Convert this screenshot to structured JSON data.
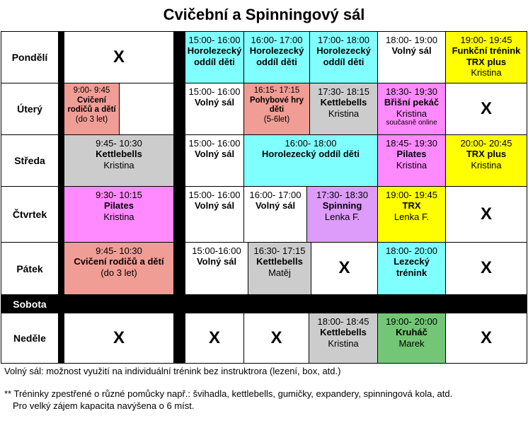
{
  "title": "Cvičební a Spinningový sál",
  "colors": {
    "cyan": "#80ffff",
    "salmon": "#f09d95",
    "grey": "#cccccc",
    "pink": "#ff8aff",
    "yellow": "#ffff00",
    "violet": "#dd9bfa",
    "green": "#73c676",
    "white": "#ffffff"
  },
  "days": {
    "mon": "Pondělí",
    "tue": "Úterý",
    "wed": "Středa",
    "thu": "Čtvrtek",
    "fri": "Pátek",
    "sat": "Sobota",
    "sun": "Neděle"
  },
  "mark": "X",
  "mon": {
    "c1": {
      "time": "15:00- 16:00",
      "name": "Horolezecký oddíl děti"
    },
    "c2": {
      "time": "16:00- 17:00",
      "name": "Horolezecký oddíl děti"
    },
    "c3": {
      "time": "17:00- 18:00",
      "name": "Horolezecký oddíl děti"
    },
    "c4": {
      "time": "18:00- 19:00",
      "name": "Volný sál"
    },
    "c5": {
      "time": "19:00- 19:45",
      "name": "Funkční trénink TRX plus",
      "trainer": "Kristina"
    }
  },
  "tue": {
    "a": {
      "time": "9:00- 9:45",
      "name": "Cvičení rodičů a dětí",
      "note": "(do 3 let)"
    },
    "c1": {
      "time": "15:00- 16:00",
      "name": "Volný sál"
    },
    "c2": {
      "time": "16:15- 17:15",
      "name": "Pohybové hry děti",
      "note": "(5-6let)"
    },
    "c3": {
      "time": "17:30- 18:15",
      "name": "Kettlebells",
      "trainer": "Kristina"
    },
    "c4": {
      "time": "18:30- 19:30",
      "name": "Břišní pekáč",
      "trainer": "Kristina",
      "note": "současně online"
    }
  },
  "wed": {
    "a": {
      "time": "9:45- 10:30",
      "name": "Kettlebells",
      "trainer": "Kristina"
    },
    "c1": {
      "time": "15:00- 16:00",
      "name": "Volný sál"
    },
    "c2": {
      "time": "16:00- 18:00",
      "name": "Horolezecký oddíl děti"
    },
    "c4": {
      "time": "18:45- 19:30",
      "name": "Pilates",
      "trainer": "Kristina"
    },
    "c5": {
      "time": "20:00- 20:45",
      "name": "TRX plus",
      "trainer": "Kristina"
    }
  },
  "thu": {
    "a": {
      "time": "9:30- 10:15",
      "name": "Pilates",
      "trainer": "Kristina"
    },
    "c1": {
      "time": "15:00- 16:00",
      "name": "Volný sál"
    },
    "c2": {
      "time": "16:00- 17:00",
      "name": "Volný sál"
    },
    "c3": {
      "time": "17:30- 18:30",
      "name": "Spinning",
      "trainer": "Lenka F."
    },
    "c4": {
      "time": "19:00- 19:45",
      "name": "TRX",
      "trainer": "Lenka F."
    }
  },
  "fri": {
    "a": {
      "time": "9:45- 10:30",
      "name": "Cvičení rodičů a dětí",
      "note": "(do 3 let)"
    },
    "c1": {
      "time": "15:00-16:00",
      "name": "Volný sál"
    },
    "c2": {
      "time": "16:30- 17:15",
      "name": "Kettlebells",
      "trainer": "Matěj"
    },
    "c4": {
      "time": "18:00- 20:00",
      "name": "Lezecký trénink"
    }
  },
  "sun": {
    "c3": {
      "time": "18:00- 18:45",
      "name": "Kettlebells",
      "trainer": "Kristina"
    },
    "c4": {
      "time": "19:00- 20:00",
      "name": "Kruháč",
      "trainer": "Marek"
    }
  },
  "footer": {
    "line1": "Volný sál: možnost využití na individuální trénink bez instruktrora (lezení, box, atd.)",
    "line2": "** Tréninky zpestřené o různé pomůcky např.: švihadla, kettlebells, gumičky, expandery, spinningová kola, atd.",
    "line3": "Pro velký zájem kapacita navýšena o 6 míst."
  }
}
